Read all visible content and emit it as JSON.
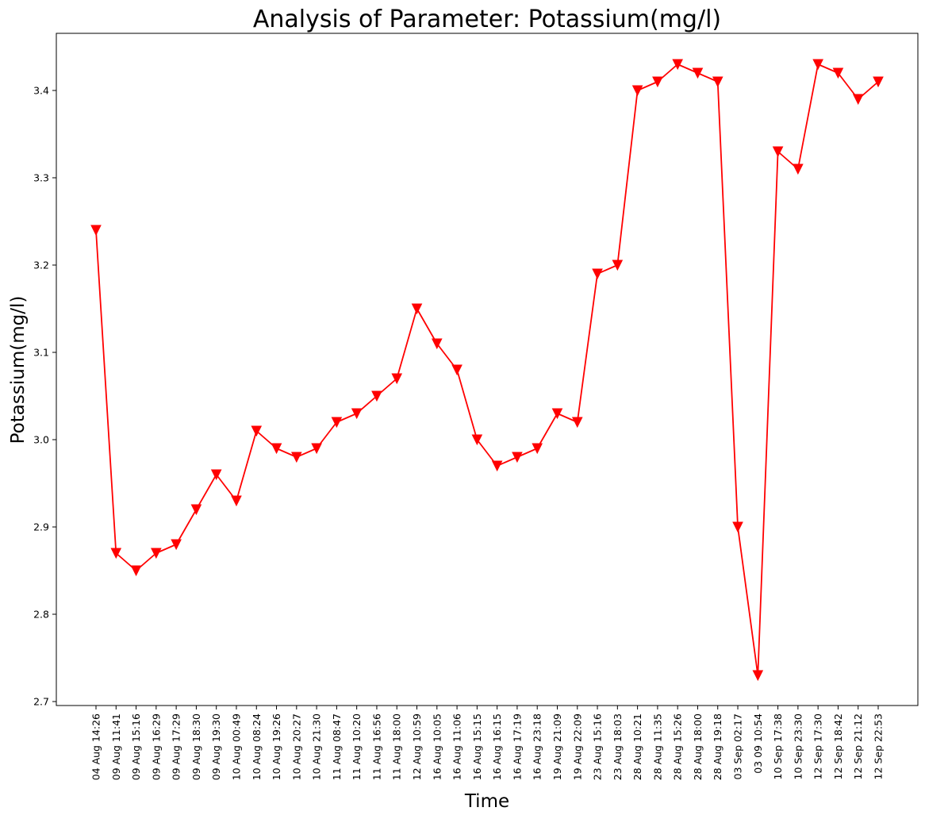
{
  "chart_data": {
    "type": "line",
    "title": "Analysis of Parameter: Potassium(mg/l)",
    "xlabel": "Time",
    "ylabel": "Potassium(mg/l)",
    "ylim": [
      2.7,
      3.45
    ],
    "yticks": [
      "2.7",
      "2.8",
      "2.9",
      "3.0",
      "3.1",
      "3.2",
      "3.3",
      "3.4"
    ],
    "grid": false,
    "line_color": "#ff0000",
    "marker": "triangle-down",
    "categories": [
      "04 Aug 14:26",
      "09 Aug 11:41",
      "09 Aug 15:16",
      "09 Aug 16:29",
      "09 Aug 17:29",
      "09 Aug 18:30",
      "09 Aug 19:30",
      "10 Aug 00:49",
      "10 Aug 08:24",
      "10 Aug 19:26",
      "10 Aug 20:27",
      "10 Aug 21:30",
      "11 Aug 08:47",
      "11 Aug 10:20",
      "11 Aug 16:56",
      "11 Aug 18:00",
      "12 Aug 10:59",
      "16 Aug 10:05",
      "16 Aug 11:06",
      "16 Aug 15:15",
      "16 Aug 16:15",
      "16 Aug 17:19",
      "16 Aug 23:18",
      "19 Aug 21:09",
      "19 Aug 22:09",
      "23 Aug 15:16",
      "23 Aug 18:03",
      "28 Aug 10:21",
      "28 Aug 11:35",
      "28 Aug 15:26",
      "28 Aug 18:00",
      "28 Aug 19:18",
      "03 Sep 02:17",
      "03 09 10:54",
      "10 Sep 17:38",
      "10 Sep 23:30",
      "12 Sep 17:30",
      "12 Sep 18:42",
      "12 Sep 21:12",
      "12 Sep 22:53"
    ],
    "values": [
      3.24,
      2.87,
      2.85,
      2.87,
      2.88,
      2.92,
      2.96,
      2.93,
      3.01,
      2.99,
      2.98,
      2.99,
      3.02,
      3.03,
      3.05,
      3.07,
      3.15,
      3.11,
      3.08,
      3.0,
      2.97,
      2.98,
      2.99,
      3.03,
      3.02,
      3.19,
      3.2,
      3.4,
      3.41,
      3.43,
      3.42,
      3.41,
      2.9,
      2.73,
      3.33,
      3.31,
      3.43,
      3.42,
      3.39,
      3.41
    ]
  }
}
